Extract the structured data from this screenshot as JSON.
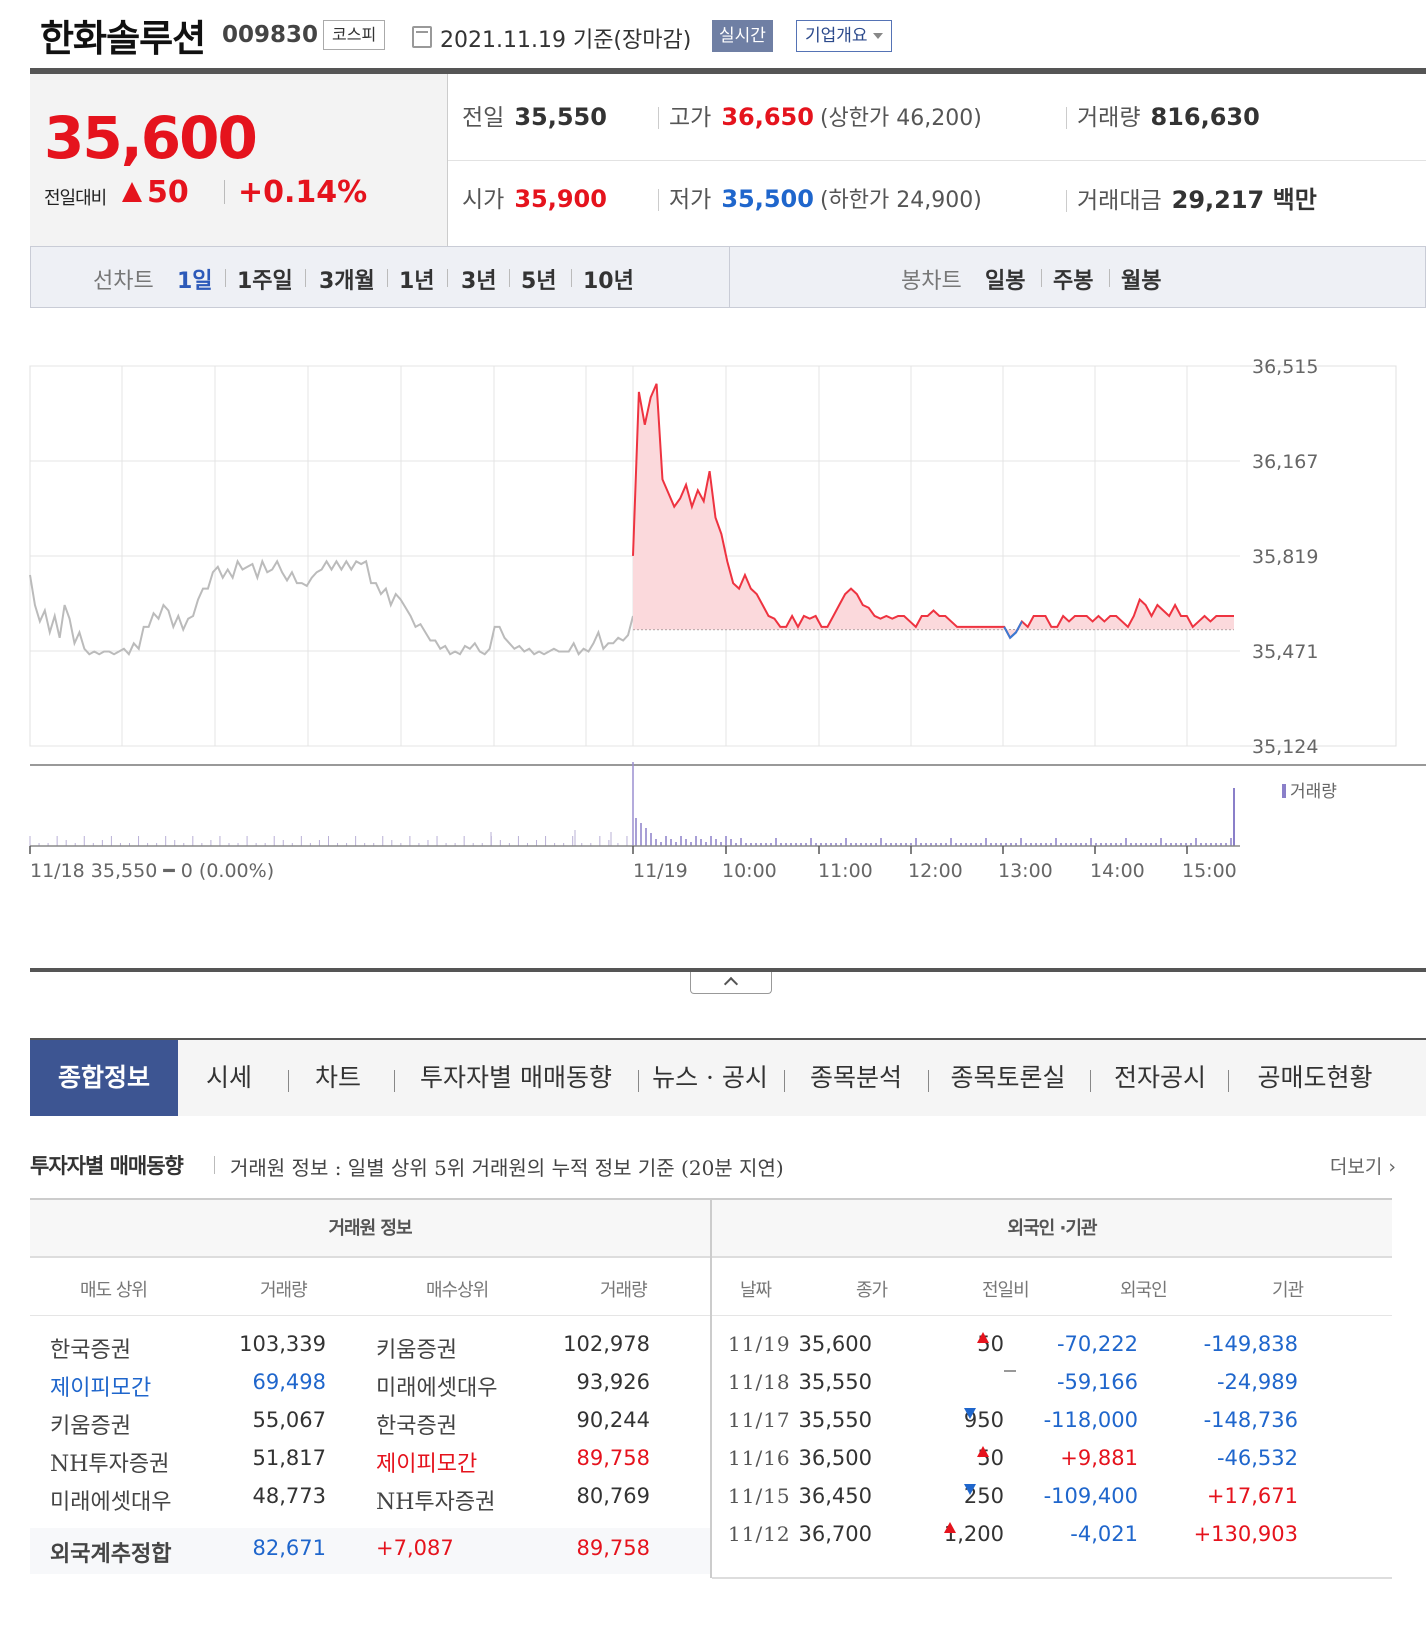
{
  "header": {
    "name": "한화솔루션",
    "code": "009830",
    "market": "코스피",
    "date": "2021.11.19 기준(장마감)",
    "realtime": "실시간",
    "overview": "기업개요"
  },
  "price": {
    "current": "35,600",
    "change_label": "전일대비",
    "change": "50",
    "change_pct": "+0.14%",
    "prev_label": "전일",
    "prev": "35,550",
    "high_label": "고가",
    "high": "36,650",
    "upper_limit": "(상한가 46,200)",
    "volume_label": "거래량",
    "volume": "816,630",
    "open_label": "시가",
    "open": "35,900",
    "low_label": "저가",
    "low": "35,500",
    "lower_limit": "(하한가 24,900)",
    "value_label": "거래대금",
    "value": "29,217 백만"
  },
  "period_nav": {
    "line_label": "선차트",
    "line_items": [
      "1일",
      "1주일",
      "3개월",
      "1년",
      "3년",
      "5년",
      "10년"
    ],
    "candle_label": "봉차트",
    "candle_items": [
      "일봉",
      "주봉",
      "월봉"
    ]
  },
  "chart_data": {
    "type": "line",
    "y_ticks": [
      "36,515",
      "36,167",
      "35,819",
      "35,471",
      "35,124"
    ],
    "ylim": [
      35124,
      36515
    ],
    "base_price": 35550,
    "volume_label": "거래량",
    "prev_day_label": "11/18 35,550 ━ 0 (0.00%)",
    "x_ticks": [
      "11/19",
      "10:00",
      "11:00",
      "12:00",
      "13:00",
      "14:00",
      "15:00"
    ],
    "series": [
      {
        "values": [
          35750,
          35640,
          35580,
          35620,
          35540,
          35600,
          35520,
          35640,
          35590,
          35500,
          35540,
          35480,
          35460,
          35470,
          35460,
          35470,
          35470,
          35460,
          35470,
          35480,
          35460,
          35500,
          35480,
          35560,
          35560,
          35610,
          35590,
          35640,
          35620,
          35560,
          35600,
          35550,
          35590,
          35600,
          35660,
          35700,
          35700,
          35760,
          35780,
          35740,
          35770,
          35740,
          35800,
          35770,
          35780,
          35790,
          35740,
          35800,
          35760,
          35770,
          35800,
          35760,
          35730,
          35760,
          35720,
          35720,
          35710,
          35740,
          35760,
          35770,
          35800,
          35770,
          35800,
          35770,
          35800,
          35770,
          35800,
          35790,
          35800,
          35720,
          35720,
          35680,
          35700,
          35640,
          35680,
          35660,
          35630,
          35600,
          35560,
          35570,
          35540,
          35510,
          35510,
          35480,
          35490,
          35460,
          35470,
          35460,
          35490,
          35480,
          35500,
          35470,
          35460,
          35480,
          35560,
          35560,
          35520,
          35500,
          35480,
          35490,
          35470,
          35480,
          35460,
          35470,
          35460,
          35470,
          35480,
          35470,
          35470,
          35470,
          35500,
          35460,
          35480,
          35470,
          35500,
          35540,
          35480,
          35500,
          35500,
          35520,
          35510,
          35530,
          35600
        ],
        "color": "#bbbbbb"
      },
      {
        "values": [
          35820,
          36420,
          36300,
          36400,
          36450,
          36100,
          36050,
          36000,
          36030,
          36080,
          36000,
          36060,
          36020,
          36130,
          35960,
          35900,
          35800,
          35720,
          35700,
          35750,
          35700,
          35680,
          35640,
          35600,
          35590,
          35560,
          35560,
          35600,
          35560,
          35600,
          35590,
          35600,
          35560,
          35560,
          35600,
          35640,
          35680,
          35700,
          35680,
          35640,
          35630,
          35600,
          35590,
          35600,
          35590,
          35600,
          35600,
          35580,
          35560,
          35600,
          35600,
          35620,
          35600,
          35600,
          35580,
          35560,
          35560,
          35560,
          35560,
          35560,
          35560,
          35560,
          35560,
          35560,
          35520,
          35540,
          35580,
          35560,
          35600,
          35600,
          35600,
          35560,
          35560,
          35600,
          35580,
          35600,
          35600,
          35600,
          35580,
          35600,
          35580,
          35600,
          35600,
          35580,
          35560,
          35600,
          35660,
          35640,
          35600,
          35640,
          35620,
          35600,
          35640,
          35600,
          35600,
          35560,
          35580,
          35600,
          35580,
          35600,
          35600,
          35600,
          35600
        ],
        "color": "#ee3340"
      }
    ]
  },
  "tabs": [
    "종합정보",
    "시세",
    "차트",
    "투자자별 매매동향",
    "뉴스 · 공시",
    "종목분석",
    "종목토론실",
    "전자공시",
    "공매도현황"
  ],
  "section": {
    "title": "투자자별 매매동향",
    "desc": "거래원 정보 : 일별 상위 5위 거래원의 누적 정보 기준 (20분 지연)",
    "more": "더보기"
  },
  "broker_table": {
    "group_title": "거래원 정보",
    "headers": [
      "매도 상위",
      "거래량",
      "매수상위",
      "거래량"
    ],
    "rows": [
      [
        "한국증권",
        "103,339",
        "키움증권",
        "102,978"
      ],
      [
        "제이피모간",
        "69,498",
        "미래에셋대우",
        "93,926"
      ],
      [
        "키움증권",
        "55,067",
        "한국증권",
        "90,244"
      ],
      [
        "NH투자증권",
        "51,817",
        "제이피모간",
        "89,758"
      ],
      [
        "미래에셋대우",
        "48,773",
        "NH투자증권",
        "80,769"
      ]
    ],
    "aggregate": [
      "외국계추정합",
      "82,671",
      "+7,087",
      "89,758"
    ]
  },
  "investor_table": {
    "group_title": "외국인 ·기관",
    "headers": [
      "날짜",
      "종가",
      "전일비",
      "외국인",
      "기관"
    ],
    "rows": [
      [
        "11/19",
        "35,600",
        "50",
        "-70,222",
        "-149,838"
      ],
      [
        "11/18",
        "35,550",
        "",
        "-59,166",
        "-24,989"
      ],
      [
        "11/17",
        "35,550",
        "950",
        "-118,000",
        "-148,736"
      ],
      [
        "11/16",
        "36,500",
        "50",
        "+9,881",
        "-46,532"
      ],
      [
        "11/15",
        "36,450",
        "250",
        "-109,400",
        "+17,671"
      ],
      [
        "11/12",
        "36,700",
        "1,200",
        "-4,021",
        "+130,903"
      ]
    ]
  }
}
